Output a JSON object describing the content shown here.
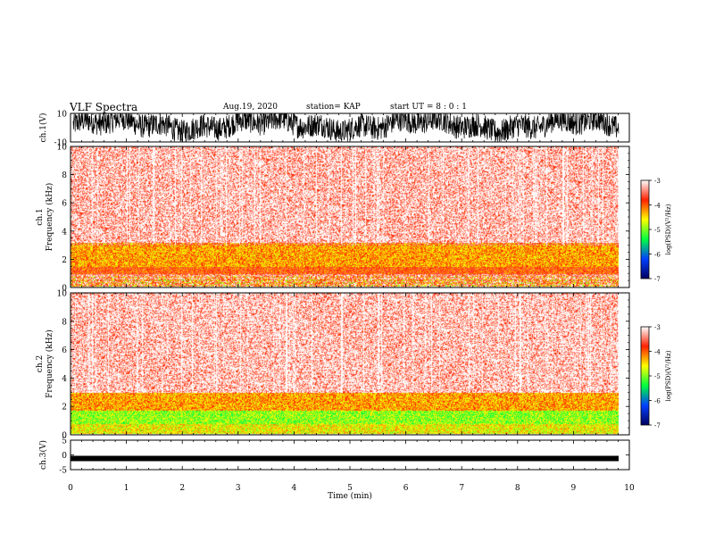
{
  "header": {
    "title": "VLF Spectra",
    "date": "Aug.19, 2020",
    "station": "station= KAP",
    "start_ut": "start UT =  8 : 0 : 1"
  },
  "chart_data": [
    {
      "type": "line",
      "name": "ch1-waveform",
      "ylabel": "ch.1(V)",
      "ylim": [
        -10,
        10
      ],
      "yticks": [
        "10",
        "-10"
      ],
      "xlim": [
        0,
        10
      ]
    },
    {
      "type": "heatmap",
      "name": "ch1-spectrogram",
      "ylabel": "ch.1\nFrequency (kHz)",
      "ylim": [
        0,
        10
      ],
      "yticks": [
        "0",
        "2",
        "4",
        "6",
        "8",
        "10"
      ],
      "xlim": [
        0,
        9.8
      ],
      "colorbar": {
        "label": "log(PSD)(V²/Hz)",
        "ticks": [
          "-3",
          "-4",
          "-5",
          "-6",
          "-7"
        ],
        "range": [
          -7,
          -3
        ],
        "colors": [
          "#000060",
          "#0040ff",
          "#00ff40",
          "#ffff00",
          "#ff2000",
          "#ffffff"
        ]
      },
      "bands": [
        {
          "from_khz": 0.1,
          "to_khz": 0.9,
          "level": "mixed"
        },
        {
          "from_khz": 1.0,
          "to_khz": 1.5,
          "level": -4
        },
        {
          "from_khz": 1.5,
          "to_khz": 3.2,
          "level": -4.3
        },
        {
          "from_khz": 3.2,
          "to_khz": 10,
          "level": -3.5
        }
      ]
    },
    {
      "type": "heatmap",
      "name": "ch2-spectrogram",
      "ylabel": "ch.2\nFrequency (kHz)",
      "ylim": [
        0,
        10
      ],
      "yticks": [
        "0",
        "2",
        "4",
        "6",
        "8",
        "10"
      ],
      "xlim": [
        0,
        9.8
      ],
      "colorbar": {
        "label": "log(PSD)(V²/Hz)",
        "ticks": [
          "-3",
          "-4",
          "-5",
          "-6",
          "-7"
        ],
        "range": [
          -7,
          -3
        ]
      },
      "bands": [
        {
          "from_khz": 0.1,
          "to_khz": 0.8,
          "level": -4.6
        },
        {
          "from_khz": 0.8,
          "to_khz": 1.7,
          "level": -4.9
        },
        {
          "from_khz": 1.7,
          "to_khz": 3.0,
          "level": -4.3
        },
        {
          "from_khz": 3.0,
          "to_khz": 10,
          "level": -3.5
        }
      ]
    },
    {
      "type": "line",
      "name": "ch3-waveform",
      "ylabel": "ch.3(V)",
      "ylim": [
        -5,
        5
      ],
      "yticks": [
        "5",
        "0",
        "-5"
      ],
      "xlim": [
        0,
        10
      ],
      "trace_level_v": -1.2
    }
  ],
  "xaxis": {
    "label": "Time (min)",
    "ticks": [
      "0",
      "1",
      "2",
      "3",
      "4",
      "5",
      "6",
      "7",
      "8",
      "9",
      "10"
    ],
    "range": [
      0,
      10
    ]
  }
}
